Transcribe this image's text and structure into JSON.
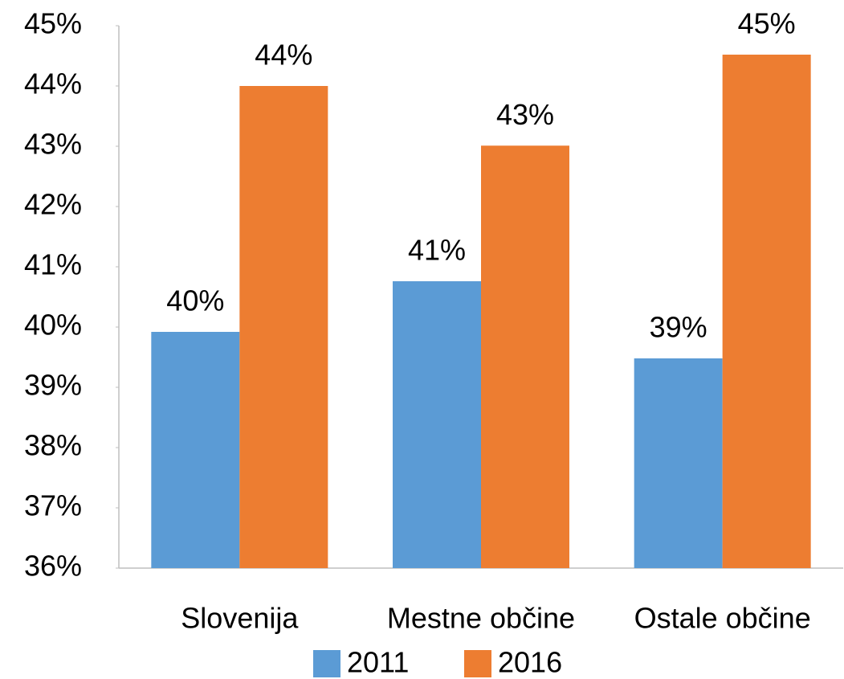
{
  "chart_data": {
    "type": "bar",
    "categories": [
      "Slovenija",
      "Mestne občine",
      "Ostale občine"
    ],
    "series": [
      {
        "name": "2011",
        "color": "#5b9bd5",
        "values": [
          39.92,
          40.76,
          39.48
        ],
        "value_labels": [
          "40%",
          "41%",
          "39%"
        ]
      },
      {
        "name": "2016",
        "color": "#ed7d31",
        "values": [
          44.0,
          43.01,
          44.52
        ],
        "value_labels": [
          "44%",
          "43%",
          "45%"
        ]
      }
    ],
    "ylim": [
      36,
      45
    ],
    "yticks": [
      {
        "value": 36,
        "label": "36%"
      },
      {
        "value": 37,
        "label": "37%"
      },
      {
        "value": 38,
        "label": "38%"
      },
      {
        "value": 39,
        "label": "39%"
      },
      {
        "value": 40,
        "label": "40%"
      },
      {
        "value": 41,
        "label": "41%"
      },
      {
        "value": 42,
        "label": "42%"
      },
      {
        "value": 43,
        "label": "43%"
      },
      {
        "value": 44,
        "label": "44%"
      },
      {
        "value": 45,
        "label": "45%"
      }
    ],
    "grid": false,
    "legend": "bottom"
  }
}
